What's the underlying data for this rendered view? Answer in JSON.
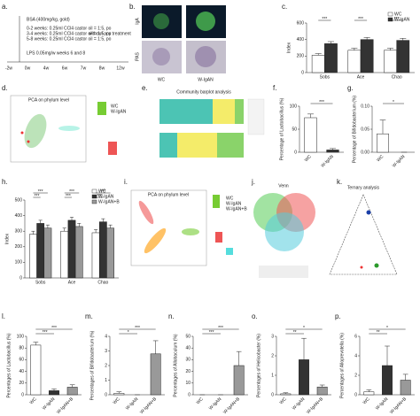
{
  "panel_labels": [
    "a.",
    "b.",
    "c.",
    "d.",
    "e.",
    "f.",
    "g.",
    "h.",
    "i.",
    "j.",
    "k.",
    "l.",
    "m.",
    "n.",
    "o.",
    "p."
  ],
  "timeline": {
    "lines": [
      "BSA (400mg/kg, gold)",
      "0-2 weeks: 0.25ml CCl4 castor oil = 1:5, po",
      "3-4 weeks: 0.25ml CCl4 castor oil = 1:5, po",
      "5-8 weeks: 0.25ml CCl4 castor oil = 1:5, po",
      "LPS 0.05mg/w weeks 6 and 8"
    ],
    "note": "without any treatment",
    "ticks": [
      "-2w",
      "0w",
      "4w",
      "6w",
      "7w",
      "8w",
      "12w"
    ]
  },
  "histology": {
    "rows": [
      "IgA",
      "PAS"
    ],
    "columns": [
      "WC",
      "W-IgAN"
    ]
  },
  "pca_d": {
    "title": "PCA on phylum level",
    "legend": [
      "WC",
      "W-IgAN"
    ]
  },
  "community_e": {
    "title": "Community barplot analysis"
  },
  "pca_i": {
    "title": "PCA on phylum level",
    "legend": [
      "WC",
      "W-IgAN",
      "W-IgAN+B"
    ]
  },
  "venn_j": {
    "title": "Venn"
  },
  "ternary_k": {
    "title": "Ternary analysis"
  },
  "chart_data": [
    {
      "type": "bar",
      "ylabel": "Index",
      "categories": [
        "Sobs",
        "Ace",
        "Chao"
      ],
      "series": [
        {
          "name": "WC",
          "color": "#ffffff",
          "values": [
            210,
            270,
            270
          ],
          "errors": [
            20,
            25,
            25
          ]
        },
        {
          "name": "W-IgAN",
          "color": "#333333",
          "values": [
            350,
            400,
            390
          ],
          "errors": [
            25,
            25,
            25
          ]
        }
      ],
      "ylim": [
        0,
        600
      ],
      "yticks": [
        0,
        200,
        400,
        600
      ],
      "annotations": [
        "***",
        "***",
        "***"
      ]
    },
    {
      "type": "bar",
      "ylabel": "Percentage of Lactobacillus (%)",
      "categories": [
        "WC",
        "W-IgAN"
      ],
      "values": [
        75,
        5
      ],
      "errors": [
        8,
        3
      ],
      "colors": [
        "#ffffff",
        "#333333"
      ],
      "ylim": [
        0,
        100
      ],
      "yticks": [
        0,
        50,
        100
      ],
      "annotations": [
        "***"
      ]
    },
    {
      "type": "bar",
      "ylabel": "Percentage of Bifidobacterium (%)",
      "categories": [
        "WC",
        "W-IgAN"
      ],
      "values": [
        0.04,
        0
      ],
      "errors": [
        0.03,
        0
      ],
      "colors": [
        "#ffffff",
        "#333333"
      ],
      "ylim": [
        0,
        0.1
      ],
      "yticks": [
        {
          "value": 0,
          "label": "0.00"
        },
        {
          "value": 0.05,
          "label": "0.05"
        },
        {
          "value": 0.1,
          "label": "0.10"
        }
      ],
      "annotations": [
        "*"
      ]
    },
    {
      "type": "bar",
      "ylabel": "Index",
      "categories": [
        "Sobs",
        "Ace",
        "Chao"
      ],
      "series": [
        {
          "name": "WC",
          "color": "#ffffff",
          "values": [
            280,
            300,
            290
          ],
          "errors": [
            20,
            20,
            20
          ]
        },
        {
          "name": "W-IgAN",
          "color": "#333333",
          "values": [
            350,
            370,
            360
          ],
          "errors": [
            20,
            20,
            20
          ]
        },
        {
          "name": "W-IgAN+B",
          "color": "#999999",
          "values": [
            320,
            330,
            320
          ],
          "errors": [
            20,
            20,
            20
          ]
        }
      ],
      "ylim": [
        0,
        500
      ],
      "yticks": [
        0,
        100,
        200,
        300,
        400,
        500
      ],
      "annotations": [
        "***",
        "***",
        "***",
        "***",
        "***",
        "***"
      ]
    },
    {
      "type": "bar",
      "ylabel": "Percentages of Lactobacillus (%)",
      "categories": [
        "WC",
        "W-IgAN",
        "W-IgAN+B"
      ],
      "values": [
        85,
        7,
        13
      ],
      "errors": [
        5,
        3,
        4
      ],
      "colors": [
        "#ffffff",
        "#333333",
        "#999999"
      ],
      "ylim": [
        0,
        100
      ],
      "yticks": [
        0,
        20,
        40,
        60,
        80,
        100
      ],
      "annotations": [
        "***",
        "***"
      ]
    },
    {
      "type": "bar",
      "ylabel": "Percentages of Bifidobacterium (%)",
      "categories": [
        "WC",
        "W-IgAN",
        "W-IgAN+B"
      ],
      "values": [
        0.1,
        0,
        2.8
      ],
      "errors": [
        0.1,
        0,
        0.9
      ],
      "colors": [
        "#ffffff",
        "#333333",
        "#999999"
      ],
      "ylim": [
        0,
        4
      ],
      "yticks": [
        0,
        1,
        2,
        3,
        4
      ],
      "annotations": [
        "*",
        "***"
      ]
    },
    {
      "type": "bar",
      "ylabel": "Percentages of Allobaculum (%)",
      "categories": [
        "WC",
        "W-IgAN",
        "W-IgAN+B"
      ],
      "values": [
        0,
        0,
        25
      ],
      "errors": [
        0,
        0,
        12
      ],
      "colors": [
        "#ffffff",
        "#333333",
        "#999999"
      ],
      "ylim": [
        0,
        50
      ],
      "yticks": [
        0,
        10,
        20,
        30,
        40,
        50
      ],
      "annotations": [
        "***",
        "***"
      ]
    },
    {
      "type": "bar",
      "ylabel": "Percentages of Helicobacter (%)",
      "categories": [
        "WC",
        "W-IgAN",
        "W-IgAN+B"
      ],
      "values": [
        0.05,
        1.8,
        0.4
      ],
      "errors": [
        0.05,
        1.1,
        0.1
      ],
      "colors": [
        "#ffffff",
        "#333333",
        "#999999"
      ],
      "ylim": [
        0,
        3
      ],
      "yticks": [
        0,
        1,
        2,
        3
      ],
      "annotations": [
        "**",
        "*"
      ]
    },
    {
      "type": "bar",
      "ylabel": "Percentages of Alloprevotella (%)",
      "categories": [
        "WC",
        "W-IgAN",
        "W-IgAN+B"
      ],
      "values": [
        0.3,
        3,
        1.5
      ],
      "errors": [
        0.2,
        2,
        0.6
      ],
      "colors": [
        "#ffffff",
        "#333333",
        "#999999"
      ],
      "ylim": [
        0,
        6
      ],
      "yticks": [
        0,
        2,
        4,
        6
      ],
      "annotations": [
        "**",
        "*"
      ]
    }
  ]
}
